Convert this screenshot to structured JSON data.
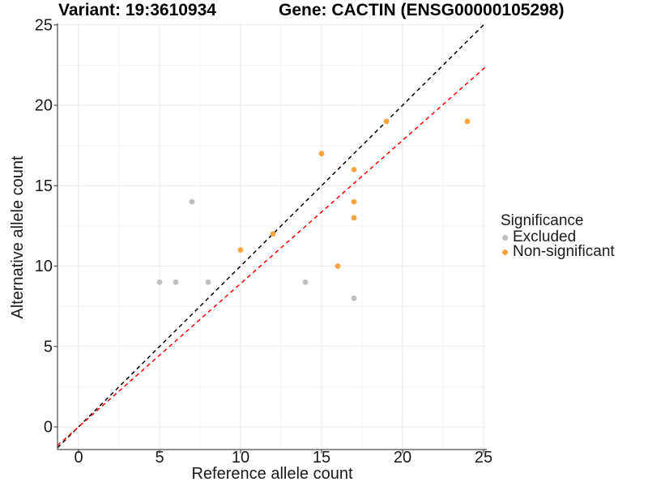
{
  "chart_data": {
    "type": "scatter",
    "titles": {
      "left": "Variant: 19:3610934",
      "right": "Gene: CACTIN (ENSG00000105298)"
    },
    "xlabel": "Reference allele count",
    "ylabel": "Alternative allele count",
    "xlim": [
      -1.3,
      25.2
    ],
    "ylim": [
      -1.4,
      25.1
    ],
    "xticks": [
      0,
      5,
      10,
      15,
      20,
      25
    ],
    "yticks": [
      0,
      5,
      10,
      15,
      20,
      25
    ],
    "xticks_minor": [
      2.5,
      7.5,
      12.5,
      17.5,
      22.5
    ],
    "yticks_minor": [
      2.5,
      7.5,
      12.5,
      17.5,
      22.5
    ],
    "grid": "major and minor gridlines on white background",
    "legend": {
      "title": "Significance",
      "position": "right-middle",
      "entries": [
        {
          "label": "Excluded",
          "color": "#BEBEBE"
        },
        {
          "label": "Non-significant",
          "color": "#F9A43C"
        }
      ]
    },
    "series": [
      {
        "name": "Excluded",
        "color": "#BEBEBE",
        "points": [
          [
            5,
            9
          ],
          [
            6,
            9
          ],
          [
            7,
            14
          ],
          [
            8,
            9
          ],
          [
            14,
            9
          ],
          [
            17,
            8
          ]
        ]
      },
      {
        "name": "Non-significant",
        "color": "#F9A43C",
        "points": [
          [
            10,
            11
          ],
          [
            12,
            12
          ],
          [
            15,
            17
          ],
          [
            16,
            10
          ],
          [
            17,
            13
          ],
          [
            17,
            14
          ],
          [
            17,
            16
          ],
          [
            19,
            19
          ],
          [
            24,
            19
          ]
        ]
      }
    ],
    "ablines": [
      {
        "name": "identity-line",
        "slope": 1,
        "intercept": 0,
        "color": "#000000",
        "linetype": "dashed"
      },
      {
        "name": "allele-ratio-line",
        "slope": 0.891,
        "intercept": 0,
        "color": "#FF0000",
        "linetype": "dashed"
      }
    ],
    "style": {
      "axis_color": "#4D4D4D",
      "tick_label_color": "#1A1A1A",
      "grid_major": "#E7E7E7",
      "grid_minor": "#F4F4F4",
      "background": "#FFFFFF"
    }
  }
}
